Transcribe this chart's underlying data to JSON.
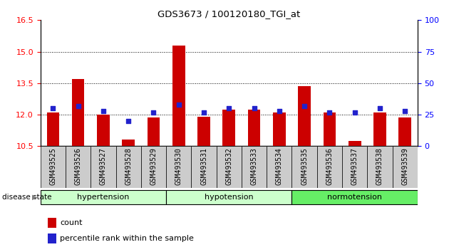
{
  "title": "GDS3673 / 100120180_TGI_at",
  "samples": [
    "GSM493525",
    "GSM493526",
    "GSM493527",
    "GSM493528",
    "GSM493529",
    "GSM493530",
    "GSM493531",
    "GSM493532",
    "GSM493533",
    "GSM493534",
    "GSM493535",
    "GSM493536",
    "GSM493537",
    "GSM493538",
    "GSM493539"
  ],
  "count_values": [
    12.1,
    13.7,
    12.0,
    10.8,
    11.85,
    15.3,
    11.9,
    12.25,
    12.25,
    12.1,
    13.35,
    12.1,
    10.75,
    12.1,
    11.85
  ],
  "percentile_values": [
    30,
    32,
    28,
    20,
    27,
    33,
    27,
    30,
    30,
    28,
    32,
    27,
    27,
    30,
    28
  ],
  "y_min": 10.5,
  "y_max": 16.5,
  "y_ticks_left": [
    10.5,
    12.0,
    13.5,
    15.0,
    16.5
  ],
  "y_ticks_right": [
    0,
    25,
    50,
    75,
    100
  ],
  "bar_color": "#cc0000",
  "dot_color": "#2222cc",
  "group_colors": [
    "#ccffcc",
    "#ccffcc",
    "#66ee66"
  ],
  "group_labels": [
    "hypertension",
    "hypotension",
    "normotension"
  ],
  "group_starts": [
    0,
    5,
    10
  ],
  "group_ends": [
    5,
    10,
    15
  ],
  "xlabel_disease": "disease state",
  "legend_count_label": "count",
  "legend_percentile_label": "percentile rank within the sample",
  "tick_fontsize": 8,
  "sample_fontsize": 7,
  "grid_color": "#000000",
  "cell_bg_color": "#cccccc"
}
